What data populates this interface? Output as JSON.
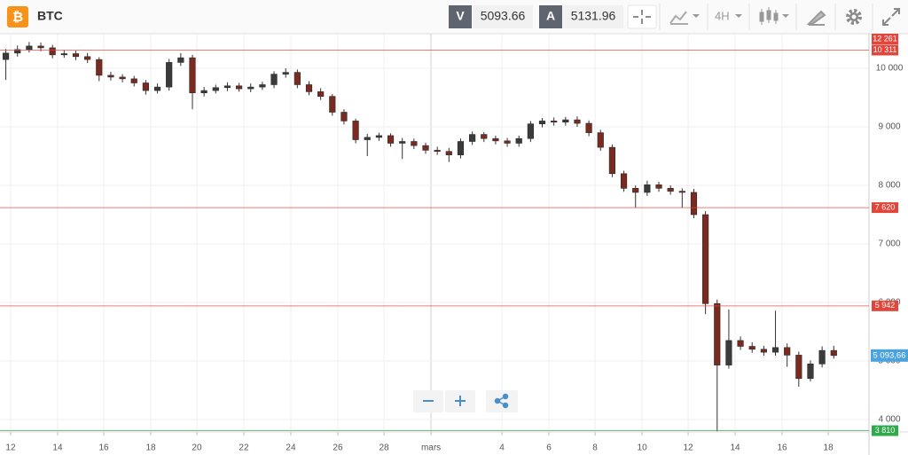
{
  "header": {
    "symbol": "BTC",
    "sell_label": "V",
    "sell_price": "5093.66",
    "buy_label": "A",
    "buy_price": "5131.96",
    "timeframe": "4H"
  },
  "chart_data": {
    "type": "candlestick",
    "up_color": "#3b3b3b",
    "down_color": "#7a2a1f",
    "grid": true,
    "xlim": [
      -0.5,
      74.02
    ],
    "ylim": [
      3788,
      10591
    ],
    "xticks": [
      {
        "value": 0.41,
        "label": "12"
      },
      {
        "value": 4.44,
        "label": "14"
      },
      {
        "value": 8.4,
        "label": "16"
      },
      {
        "value": 12.43,
        "label": "18"
      },
      {
        "value": 16.38,
        "label": "20"
      },
      {
        "value": 20.41,
        "label": "22"
      },
      {
        "value": 24.44,
        "label": "24"
      },
      {
        "value": 28.47,
        "label": "26"
      },
      {
        "value": 32.43,
        "label": "28"
      },
      {
        "value": 36.46,
        "label": "mars"
      },
      {
        "value": 42.54,
        "label": "4"
      },
      {
        "value": 46.57,
        "label": "6"
      },
      {
        "value": 50.53,
        "label": "8"
      },
      {
        "value": 54.56,
        "label": "10"
      },
      {
        "value": 58.51,
        "label": "12"
      },
      {
        "value": 62.54,
        "label": "14"
      },
      {
        "value": 66.57,
        "label": "16"
      },
      {
        "value": 70.53,
        "label": "18"
      }
    ],
    "yticks": [
      {
        "value": 4000,
        "label": "4 000"
      },
      {
        "value": 5000,
        "label": "5 000"
      },
      {
        "value": 6000,
        "label": "6 000"
      },
      {
        "value": 7000,
        "label": "7 000"
      },
      {
        "value": 8000,
        "label": "8 000"
      },
      {
        "value": 9000,
        "label": "9 000"
      },
      {
        "value": 10000,
        "label": "10 000"
      }
    ],
    "levels": [
      {
        "value": 12261,
        "label": "12 261",
        "color": "#e2463a"
      },
      {
        "value": 10311,
        "label": "10 311",
        "color": "#e2463a"
      },
      {
        "value": 7620,
        "label": "7 620",
        "color": "#e2463a"
      },
      {
        "value": 5942,
        "label": "5 942",
        "color": "#e2463a"
      },
      {
        "value": 3810,
        "label": "3 810",
        "color": "#2eaa4a"
      }
    ],
    "current_price": {
      "value": 5093.66,
      "label": "5 093,66",
      "color": "#4aa3df"
    },
    "open": [
      10150,
      10260,
      10320,
      10380,
      10350,
      10230,
      10250,
      10200,
      10150,
      9880,
      9850,
      9820,
      9750,
      9620,
      9680,
      10100,
      10180,
      9580,
      9620,
      9670,
      9700,
      9650,
      9680,
      9720,
      9900,
      9930,
      9720,
      9600,
      9520,
      9250,
      9100,
      8780,
      8820,
      8850,
      8720,
      8750,
      8680,
      8600,
      8580,
      8520,
      8750,
      8870,
      8800,
      8760,
      8720,
      8800,
      9050,
      9100,
      9080,
      9120,
      9060,
      8900,
      8650,
      8200,
      7950,
      7880,
      8010,
      7950,
      7900,
      7880,
      7500,
      5980,
      4930,
      5350,
      5250,
      5200,
      5150,
      5230,
      5100,
      4700,
      4950,
      5180
    ],
    "high": [
      10330,
      10390,
      10450,
      10440,
      10400,
      10310,
      10300,
      10260,
      10190,
      9940,
      9900,
      9870,
      9800,
      9740,
      10160,
      10260,
      10230,
      9680,
      9720,
      9760,
      9750,
      9740,
      9770,
      9950,
      10000,
      9980,
      9780,
      9660,
      9560,
      9300,
      9140,
      8880,
      8900,
      8890,
      8810,
      8800,
      8730,
      8660,
      8640,
      8800,
      8920,
      8910,
      8850,
      8810,
      8850,
      9100,
      9150,
      9160,
      9170,
      9180,
      9110,
      8950,
      8700,
      8250,
      8000,
      8080,
      8060,
      8000,
      7950,
      7940,
      7560,
      6050,
      5880,
      5420,
      5320,
      5260,
      5860,
      5300,
      5160,
      5010,
      5250,
      5260
    ],
    "low": [
      9800,
      10200,
      10270,
      10290,
      10170,
      10180,
      10140,
      10090,
      9780,
      9790,
      9760,
      9690,
      9550,
      9570,
      9620,
      10040,
      9300,
      9520,
      9570,
      9610,
      9600,
      9590,
      9630,
      9660,
      9840,
      9660,
      9540,
      9460,
      9190,
      9040,
      8720,
      8500,
      8760,
      8660,
      8450,
      8620,
      8540,
      8520,
      8400,
      8460,
      8690,
      8740,
      8700,
      8660,
      8660,
      8740,
      8990,
      9020,
      9020,
      9000,
      8840,
      8590,
      8140,
      7890,
      7620,
      7820,
      7890,
      7840,
      7620,
      7440,
      5800,
      3800,
      4870,
      5190,
      5140,
      5090,
      5090,
      4900,
      4560,
      4650,
      4890,
      5040
    ],
    "close": [
      10260,
      10320,
      10380,
      10350,
      10230,
      10250,
      10200,
      10150,
      9880,
      9850,
      9820,
      9750,
      9620,
      9680,
      10100,
      10180,
      9580,
      9620,
      9670,
      9700,
      9650,
      9680,
      9720,
      9900,
      9930,
      9720,
      9600,
      9520,
      9250,
      9100,
      8780,
      8820,
      8850,
      8720,
      8750,
      8680,
      8600,
      8580,
      8520,
      8750,
      8870,
      8800,
      8760,
      8720,
      8800,
      9050,
      9100,
      9080,
      9120,
      9060,
      8900,
      8650,
      8200,
      7950,
      7880,
      8010,
      7950,
      7900,
      7880,
      7500,
      5980,
      4930,
      5350,
      5250,
      5200,
      5150,
      5230,
      5100,
      4700,
      4950,
      5180,
      5093.66
    ]
  }
}
